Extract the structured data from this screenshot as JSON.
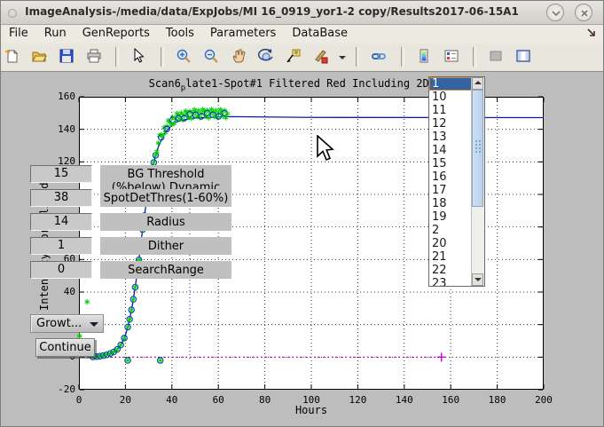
{
  "window": {
    "title": "ImageAnalysis-/media/data/ExpJobs/MI 16_0919_yor1-2 copy/Results2017-06-15A1",
    "buttons": [
      "shade-button",
      "close-button"
    ]
  },
  "menu": {
    "items": [
      "File",
      "Run",
      "GenReports",
      "Tools",
      "Parameters",
      "DataBase"
    ],
    "right_icon": "dock-figure-icon"
  },
  "toolbar": {
    "icons": [
      "new-document-icon",
      "open-folder-icon",
      "save-icon",
      "print-icon",
      "pointer-icon",
      "zoom-in-icon",
      "zoom-out-icon",
      "pan-hand-icon",
      "rotate-3d-icon",
      "data-cursor-icon",
      "brush-icon",
      "brush-dropdown-caret",
      "link-plots-icon",
      "colorbar-icon",
      "legend-icon",
      "hide-plot-tools-icon",
      "show-plot-tools-icon"
    ]
  },
  "controls": {
    "fields": [
      {
        "value": "15",
        "label": "BG Threshold",
        "sublabel": "(%below) Dynamic"
      },
      {
        "value": "38",
        "label": "SpotDetThres(1-60%)"
      },
      {
        "value": "14",
        "label": "Radius"
      },
      {
        "value": "1",
        "label": "Dither"
      },
      {
        "value": "0",
        "label": "SearchRange"
      }
    ],
    "growth_dropdown_label": "Growt...",
    "continue_button_label": "Continue",
    "spot_list": {
      "selected": "1",
      "items": [
        "1",
        "10",
        "11",
        "12",
        "13",
        "14",
        "15",
        "16",
        "17",
        "18",
        "19",
        "2",
        "20",
        "21",
        "22",
        "23"
      ]
    }
  },
  "chart_data": {
    "type": "line",
    "title": "Scan6_plate1-Spot#1 Filtered Red Including 2Deriv Bl",
    "title_pre": "Scan6",
    "title_sub": "p",
    "title_post": "late1-Spot#1 Filtered Red Including 2Deriv Bl",
    "xlabel": "Hours",
    "ylabel": "Intensity Normalized",
    "xlim": [
      0,
      200
    ],
    "ylim": [
      -20,
      160
    ],
    "x_ticks": [
      0,
      20,
      40,
      60,
      80,
      100,
      120,
      140,
      160,
      180,
      200
    ],
    "y_ticks": [
      -20,
      0,
      20,
      40,
      60,
      80,
      100,
      120,
      140,
      160
    ],
    "grid": true,
    "series": [
      {
        "name": "growth-fit-line",
        "color": "#0a1db0",
        "points": [
          [
            4,
            0
          ],
          [
            6,
            0.2
          ],
          [
            8,
            0.4
          ],
          [
            10,
            0.8
          ],
          [
            12,
            1.5
          ],
          [
            14,
            2.5
          ],
          [
            15,
            3.2
          ],
          [
            16,
            4.2
          ],
          [
            17,
            5.5
          ],
          [
            18,
            7.5
          ],
          [
            19,
            10
          ],
          [
            20,
            13.5
          ],
          [
            21,
            18.5
          ],
          [
            22,
            24.5
          ],
          [
            23,
            32
          ],
          [
            24,
            41
          ],
          [
            25,
            51
          ],
          [
            26,
            62
          ],
          [
            27,
            74
          ],
          [
            28,
            85
          ],
          [
            29,
            95
          ],
          [
            30,
            104
          ],
          [
            31,
            112
          ],
          [
            32,
            118.5
          ],
          [
            33,
            124
          ],
          [
            34,
            128.5
          ],
          [
            35,
            132
          ],
          [
            36,
            135
          ],
          [
            37,
            137.5
          ],
          [
            38,
            139.5
          ],
          [
            40,
            142.5
          ],
          [
            42,
            144.5
          ],
          [
            44,
            145.5
          ],
          [
            46,
            146
          ],
          [
            48,
            146.5
          ],
          [
            50,
            147
          ],
          [
            54,
            147.2
          ],
          [
            58,
            147.5
          ],
          [
            64,
            147.8
          ],
          [
            100,
            147.3
          ],
          [
            200,
            147.2
          ]
        ]
      },
      {
        "name": "measured-points",
        "color": "#00d400",
        "marker": "green-asterisk-blue-circle",
        "x_range": [
          6,
          64
        ]
      }
    ],
    "reference_lines": [
      {
        "name": "baseline",
        "orientation": "horizontal",
        "y": 0,
        "x_range": [
          0,
          156
        ],
        "style": "dotted",
        "color": "#cc00cc",
        "end_marker": "plus"
      },
      {
        "name": "fit-start-marker",
        "orientation": "vertical",
        "x": 47.7,
        "y_range": [
          -1,
          115
        ],
        "style": "dotted",
        "color": "#2233cc"
      }
    ],
    "outlier_points": [
      [
        21,
        -2
      ],
      [
        35,
        -2
      ]
    ],
    "stray_asterisks": [
      [
        0.3,
        13
      ],
      [
        3.5,
        34
      ]
    ],
    "legend": null
  }
}
